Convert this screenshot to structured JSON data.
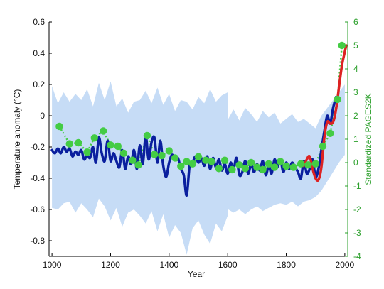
{
  "chart_data": {
    "type": "line",
    "xlabel": "Year",
    "ylabel": "Temperature anomaly (°C)",
    "ylabel_right": "Standardized PAGES2K",
    "xlim": [
      990,
      2010
    ],
    "ylim": [
      -0.9,
      0.6
    ],
    "ylim_right": [
      -4,
      6
    ],
    "x_ticks": [
      1000,
      1200,
      1400,
      1600,
      1800,
      2000
    ],
    "x_tick_labels": [
      "1000",
      "1200",
      "1400",
      "1600",
      "1800",
      "2000"
    ],
    "y_ticks": [
      0.6,
      0.4,
      0.2,
      0,
      -0.2,
      -0.4,
      -0.6,
      -0.8
    ],
    "y_tick_labels": [
      "0.6",
      "0.4",
      "0.2",
      "0",
      "-0.2",
      "-0.4",
      "-0.6",
      "-0.8"
    ],
    "y_ticks_right": [
      6,
      5,
      4,
      3,
      2,
      1,
      0,
      -1,
      -2,
      -3,
      -4
    ],
    "y_tick_labels_right": [
      "6",
      "5",
      "4",
      "3",
      "2",
      "1",
      "0",
      "-1",
      "-2",
      "-3",
      "-4"
    ],
    "grid": false,
    "colors": {
      "uncertainty_band": "#c6dcf6",
      "reconstruction": "#0a1f9e",
      "instrumental": "#dd2222",
      "pages2k": "#44cc44",
      "right_axis": "#2ca02c"
    },
    "series": [
      {
        "kind": "band",
        "axis": "left",
        "x": [
          1000,
          1020,
          1040,
          1060,
          1080,
          1100,
          1120,
          1140,
          1160,
          1180,
          1200,
          1220,
          1240,
          1260,
          1280,
          1300,
          1320,
          1340,
          1360,
          1380,
          1400,
          1420,
          1440,
          1460,
          1480,
          1500,
          1520,
          1540,
          1560,
          1580,
          1600,
          1602,
          1620,
          1640,
          1660,
          1680,
          1700,
          1720,
          1740,
          1760,
          1780,
          1800,
          1820,
          1840,
          1860,
          1880,
          1900,
          1920,
          1940,
          1960,
          1980,
          2000
        ],
        "upper": [
          0.19,
          0.08,
          0.15,
          0.09,
          0.14,
          0.1,
          0.17,
          0.06,
          0.21,
          0.1,
          0.22,
          0.06,
          0.11,
          0.02,
          0.09,
          0.1,
          0.16,
          0.08,
          0.18,
          0.07,
          0.14,
          0.03,
          0.1,
          0.09,
          0.04,
          0.12,
          0.08,
          0.17,
          0.09,
          0.13,
          0.15,
          -0.02,
          0.04,
          -0.03,
          0.05,
          0.01,
          -0.04,
          0.03,
          -0.01,
          0.02,
          -0.05,
          -0.02,
          0.01,
          -0.04,
          -0.02,
          -0.05,
          -0.08,
          0.0,
          0.05,
          0.1,
          0.15,
          0.2
        ],
        "lower": [
          -0.59,
          -0.6,
          -0.56,
          -0.55,
          -0.62,
          -0.56,
          -0.6,
          -0.65,
          -0.53,
          -0.58,
          -0.67,
          -0.59,
          -0.71,
          -0.62,
          -0.6,
          -0.64,
          -0.69,
          -0.61,
          -0.74,
          -0.63,
          -0.78,
          -0.7,
          -0.75,
          -0.89,
          -0.72,
          -0.67,
          -0.76,
          -0.82,
          -0.69,
          -0.74,
          -0.64,
          -0.6,
          -0.62,
          -0.6,
          -0.63,
          -0.6,
          -0.58,
          -0.61,
          -0.59,
          -0.57,
          -0.56,
          -0.57,
          -0.55,
          -0.58,
          -0.55,
          -0.54,
          -0.52,
          -0.48,
          -0.42,
          -0.36,
          -0.3,
          -0.25
        ]
      },
      {
        "kind": "line",
        "axis": "left",
        "x": [
          1000,
          1010,
          1020,
          1030,
          1040,
          1050,
          1060,
          1070,
          1080,
          1090,
          1100,
          1110,
          1120,
          1130,
          1140,
          1150,
          1160,
          1170,
          1180,
          1190,
          1200,
          1210,
          1220,
          1230,
          1240,
          1250,
          1260,
          1270,
          1280,
          1290,
          1300,
          1310,
          1320,
          1330,
          1340,
          1350,
          1360,
          1370,
          1380,
          1390,
          1400,
          1410,
          1420,
          1430,
          1440,
          1450,
          1460,
          1470,
          1480,
          1490,
          1500,
          1510,
          1520,
          1530,
          1540,
          1550,
          1560,
          1570,
          1580,
          1590,
          1600,
          1610,
          1620,
          1630,
          1640,
          1650,
          1660,
          1670,
          1680,
          1690,
          1700,
          1710,
          1720,
          1730,
          1740,
          1750,
          1760,
          1770,
          1780,
          1790,
          1800,
          1810,
          1820,
          1830,
          1840,
          1850,
          1860,
          1870,
          1880,
          1890,
          1900,
          1910,
          1920,
          1930,
          1940,
          1950,
          1960,
          1970
        ],
        "y": [
          -0.22,
          -0.24,
          -0.21,
          -0.24,
          -0.2,
          -0.23,
          -0.21,
          -0.26,
          -0.23,
          -0.25,
          -0.22,
          -0.28,
          -0.25,
          -0.27,
          -0.2,
          -0.3,
          -0.14,
          -0.24,
          -0.29,
          -0.16,
          -0.29,
          -0.24,
          -0.29,
          -0.33,
          -0.22,
          -0.34,
          -0.26,
          -0.31,
          -0.22,
          -0.34,
          -0.19,
          -0.31,
          -0.13,
          -0.28,
          -0.17,
          -0.14,
          -0.3,
          -0.16,
          -0.32,
          -0.39,
          -0.3,
          -0.25,
          -0.28,
          -0.27,
          -0.34,
          -0.38,
          -0.51,
          -0.32,
          -0.3,
          -0.26,
          -0.3,
          -0.27,
          -0.32,
          -0.26,
          -0.34,
          -0.27,
          -0.33,
          -0.28,
          -0.35,
          -0.31,
          -0.37,
          -0.3,
          -0.34,
          -0.27,
          -0.38,
          -0.36,
          -0.29,
          -0.37,
          -0.31,
          -0.36,
          -0.31,
          -0.35,
          -0.29,
          -0.38,
          -0.32,
          -0.37,
          -0.28,
          -0.33,
          -0.28,
          -0.36,
          -0.3,
          -0.34,
          -0.3,
          -0.33,
          -0.36,
          -0.4,
          -0.29,
          -0.37,
          -0.34,
          -0.28,
          -0.39,
          -0.34,
          -0.22,
          -0.1,
          0.0,
          -0.05,
          0.05,
          0.12
        ]
      },
      {
        "kind": "line",
        "axis": "left",
        "x": [
          1850,
          1860,
          1870,
          1880,
          1890,
          1900,
          1910,
          1920,
          1930,
          1940,
          1950,
          1960,
          1970,
          1980,
          1990,
          2000,
          2005
        ],
        "y": [
          -0.31,
          -0.32,
          -0.28,
          -0.26,
          -0.34,
          -0.4,
          -0.41,
          -0.33,
          -0.14,
          -0.04,
          -0.05,
          -0.04,
          0.04,
          0.18,
          0.32,
          0.41,
          0.45
        ]
      },
      {
        "kind": "dotted-markers",
        "axis": "right",
        "x": [
          1025,
          1060,
          1090,
          1120,
          1145,
          1175,
          1200,
          1225,
          1245,
          1275,
          1295,
          1325,
          1350,
          1375,
          1400,
          1420,
          1440,
          1460,
          1480,
          1500,
          1525,
          1545,
          1570,
          1590,
          1615,
          1640,
          1660,
          1680,
          1700,
          1720,
          1740,
          1760,
          1780,
          1800,
          1825,
          1850,
          1875,
          1900,
          1925,
          1950,
          1975,
          1990
        ],
        "y": [
          1.55,
          0.8,
          0.85,
          0.45,
          1.05,
          1.35,
          0.75,
          0.7,
          0.4,
          0.1,
          -0.1,
          1.15,
          0.35,
          0.3,
          0.5,
          0.2,
          -0.15,
          0.05,
          -0.05,
          0.25,
          0.1,
          0.05,
          -0.25,
          0.1,
          -0.3,
          -0.1,
          -0.25,
          0.0,
          -0.2,
          -0.3,
          -0.05,
          -0.2,
          0.05,
          -0.15,
          -0.2,
          -0.05,
          -0.1,
          -0.05,
          0.7,
          1.25,
          2.7,
          5.0
        ]
      }
    ]
  }
}
